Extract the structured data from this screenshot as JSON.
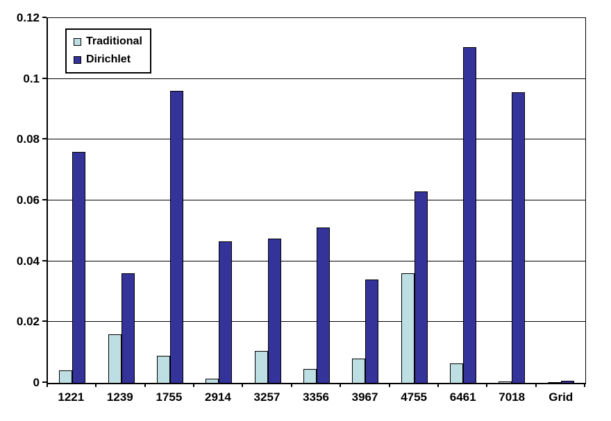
{
  "chart_data": {
    "type": "bar",
    "title": "",
    "xlabel": "",
    "ylabel": "",
    "categories": [
      "1221",
      "1239",
      "1755",
      "2914",
      "3257",
      "3356",
      "3967",
      "4755",
      "6461",
      "7018",
      "Grid"
    ],
    "series": [
      {
        "name": "Traditional",
        "color": "#BDDEE3",
        "values": [
          0.004,
          0.016,
          0.009,
          0.0013,
          0.0105,
          0.0045,
          0.008,
          0.036,
          0.0065,
          0.0005,
          0.0003
        ]
      },
      {
        "name": "Dirichlet",
        "color": "#333399",
        "values": [
          0.076,
          0.036,
          0.096,
          0.0465,
          0.0475,
          0.051,
          0.034,
          0.063,
          0.1105,
          0.0955,
          0.0008
        ]
      }
    ],
    "ylim": [
      0,
      0.12
    ],
    "yticks": [
      0,
      0.02,
      0.04,
      0.06,
      0.08,
      0.1,
      0.12
    ],
    "ytick_labels": [
      "0",
      "0.02",
      "0.04",
      "0.06",
      "0.08",
      "0.1",
      "0.12"
    ],
    "grid": true,
    "legend_position": "top-left",
    "bar_border_color": "#000000",
    "background_color": "#FFFFFF"
  }
}
